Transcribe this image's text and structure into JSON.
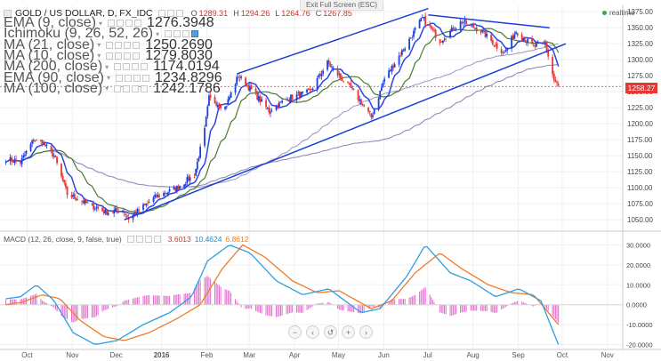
{
  "header": {
    "symbol": "GOLD / US DOLLAR, D, FX_IDC",
    "ohlc": [
      {
        "k": "O",
        "v": "1289.31"
      },
      {
        "k": "H",
        "v": "1294.26"
      },
      {
        "k": "L",
        "v": "1264.76"
      },
      {
        "k": "C",
        "v": "1267.85"
      }
    ],
    "fullscreen_hint": "Exit Full Screen (ESC)",
    "realtime_label": "realtime"
  },
  "indicators": [
    {
      "label": "EMA (9, close)",
      "value": "1276.3948"
    },
    {
      "label": "Ichimoku (9, 26, 52, 26)",
      "value": ""
    },
    {
      "label": "MA (21, close)",
      "value": "1250.2690"
    },
    {
      "label": "MA (10, close)",
      "value": "1279.8030"
    },
    {
      "label": "MA (200, close)",
      "value": "1174.0194"
    },
    {
      "label": "EMA (90, close)",
      "value": "1234.8296"
    },
    {
      "label": "MA (100, close)",
      "value": "1242.1786"
    }
  ],
  "macd_legend": {
    "label": "MACD (12, 26, close, 9, false, true)",
    "values": [
      "3.6013",
      "10.4624",
      "6.8612"
    ]
  },
  "current_price_label": "1258.27",
  "colors": {
    "candle_up": "#1e3fe0",
    "candle_down": "#e53935",
    "trendline": "#1d3fd8",
    "ema9": "#2b45e6",
    "ma21": "#4a7a2d",
    "ma_slow": "#8a82b0",
    "macd_line": "#2f9ee0",
    "signal_line": "#f07b2a",
    "histogram": "#e26bcb",
    "price_tag": "#e53935"
  },
  "nav_icons": [
    "zoom-out-icon",
    "scroll-left-icon",
    "reset-icon",
    "zoom-in-icon",
    "scroll-right-icon"
  ],
  "chart_data": [
    {
      "type": "candlestick",
      "title": "GOLD / US DOLLAR, D, FX_IDC",
      "x_tick_labels": [
        "Oct",
        "Nov",
        "Dec",
        "2016",
        "Feb",
        "Mar",
        "Apr",
        "May",
        "Jun",
        "Jul",
        "Aug",
        "Sep",
        "Oct",
        "Nov"
      ],
      "y_ticks": [
        1050,
        1075,
        1100,
        1125,
        1150,
        1175,
        1200,
        1225,
        1250,
        1275,
        1300,
        1325,
        1350,
        1375
      ],
      "ylim": [
        1035,
        1385
      ],
      "close_path": [
        [
          "2015-09-25",
          1145
        ],
        [
          "2015-10-05",
          1140
        ],
        [
          "2015-10-14",
          1175
        ],
        [
          "2015-10-20",
          1170
        ],
        [
          "2015-10-28",
          1150
        ],
        [
          "2015-11-06",
          1090
        ],
        [
          "2015-11-20",
          1075
        ],
        [
          "2015-12-02",
          1062
        ],
        [
          "2015-12-14",
          1065
        ],
        [
          "2015-12-18",
          1052
        ],
        [
          "2016-01-05",
          1085
        ],
        [
          "2016-01-20",
          1100
        ],
        [
          "2016-02-01",
          1120
        ],
        [
          "2016-02-08",
          1190
        ],
        [
          "2016-02-11",
          1240
        ],
        [
          "2016-02-22",
          1225
        ],
        [
          "2016-03-02",
          1275
        ],
        [
          "2016-03-14",
          1245
        ],
        [
          "2016-03-23",
          1220
        ],
        [
          "2016-04-05",
          1240
        ],
        [
          "2016-04-20",
          1250
        ],
        [
          "2016-05-02",
          1295
        ],
        [
          "2016-05-20",
          1250
        ],
        [
          "2016-06-01",
          1210
        ],
        [
          "2016-06-10",
          1270
        ],
        [
          "2016-06-24",
          1320
        ],
        [
          "2016-07-06",
          1365
        ],
        [
          "2016-07-18",
          1330
        ],
        [
          "2016-08-02",
          1360
        ],
        [
          "2016-08-15",
          1345
        ],
        [
          "2016-08-31",
          1310
        ],
        [
          "2016-09-08",
          1345
        ],
        [
          "2016-09-20",
          1320
        ],
        [
          "2016-09-28",
          1325
        ],
        [
          "2016-10-04",
          1268
        ],
        [
          "2016-10-07",
          1258
        ]
      ],
      "trendlines": [
        {
          "name": "channel-upper",
          "from": [
            "2016-03-01",
            1278
          ],
          "to": [
            "2016-07-10",
            1380
          ]
        },
        {
          "name": "channel-lower",
          "from": [
            "2015-12-15",
            1050
          ],
          "to": [
            "2016-10-12",
            1325
          ]
        },
        {
          "name": "triangle-top",
          "from": [
            "2016-07-10",
            1370
          ],
          "to": [
            "2016-10-01",
            1350
          ]
        }
      ],
      "current_price": 1258.27
    },
    {
      "type": "line",
      "title": "MACD (12, 26, close, 9, false, true)",
      "y_ticks": [
        30,
        20,
        10,
        0,
        -10,
        -20
      ],
      "y_tick_labels": [
        "30.0000",
        "20.0000",
        "10.0000",
        "0.0000",
        "-10.0000",
        "-20.0000"
      ],
      "ylim": [
        -22,
        36
      ],
      "series": [
        {
          "name": "MACD",
          "points": [
            [
              "2015-09-25",
              3
            ],
            [
              "2015-10-05",
              4
            ],
            [
              "2015-10-16",
              10
            ],
            [
              "2015-10-28",
              2
            ],
            [
              "2015-11-10",
              -14
            ],
            [
              "2015-11-25",
              -20
            ],
            [
              "2015-12-10",
              -18
            ],
            [
              "2015-12-28",
              -10
            ],
            [
              "2016-01-15",
              -4
            ],
            [
              "2016-01-30",
              4
            ],
            [
              "2016-02-10",
              22
            ],
            [
              "2016-02-25",
              30
            ],
            [
              "2016-03-10",
              26
            ],
            [
              "2016-03-28",
              12
            ],
            [
              "2016-04-15",
              5
            ],
            [
              "2016-05-03",
              8
            ],
            [
              "2016-05-25",
              -4
            ],
            [
              "2016-06-07",
              -2
            ],
            [
              "2016-06-25",
              14
            ],
            [
              "2016-07-08",
              30
            ],
            [
              "2016-07-25",
              16
            ],
            [
              "2016-08-08",
              12
            ],
            [
              "2016-08-25",
              4
            ],
            [
              "2016-09-10",
              8
            ],
            [
              "2016-09-25",
              2
            ],
            [
              "2016-10-07",
              -20
            ]
          ]
        },
        {
          "name": "Signal",
          "points": [
            [
              "2015-09-25",
              0
            ],
            [
              "2015-10-05",
              1
            ],
            [
              "2015-10-20",
              5
            ],
            [
              "2015-11-01",
              3
            ],
            [
              "2015-11-15",
              -8
            ],
            [
              "2015-12-01",
              -16
            ],
            [
              "2015-12-15",
              -18
            ],
            [
              "2016-01-01",
              -14
            ],
            [
              "2016-01-20",
              -7
            ],
            [
              "2016-02-05",
              0
            ],
            [
              "2016-02-20",
              18
            ],
            [
              "2016-03-05",
              30
            ],
            [
              "2016-03-20",
              24
            ],
            [
              "2016-04-08",
              12
            ],
            [
              "2016-04-25",
              6
            ],
            [
              "2016-05-10",
              7
            ],
            [
              "2016-06-01",
              -2
            ],
            [
              "2016-06-15",
              2
            ],
            [
              "2016-07-01",
              16
            ],
            [
              "2016-07-18",
              26
            ],
            [
              "2016-08-02",
              18
            ],
            [
              "2016-08-20",
              10
            ],
            [
              "2016-09-05",
              6
            ],
            [
              "2016-09-20",
              5
            ],
            [
              "2016-10-07",
              -10
            ]
          ]
        }
      ]
    }
  ]
}
